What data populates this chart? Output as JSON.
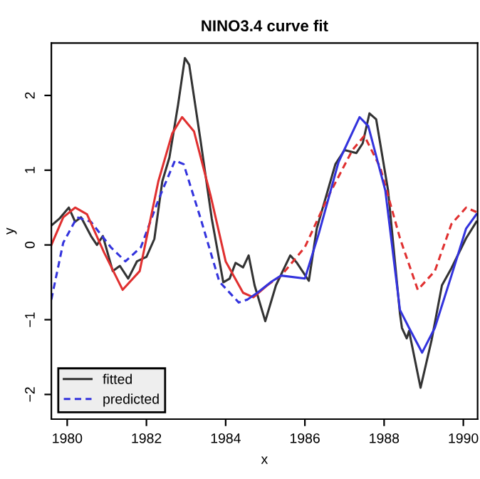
{
  "chart_data": {
    "type": "line",
    "title": "NINO3.4 curve fit",
    "xlabel": "x",
    "ylabel": "y",
    "xlim": [
      1979.6,
      1990.36
    ],
    "ylim": [
      -2.33,
      2.7
    ],
    "xticks": [
      1980,
      1982,
      1984,
      1986,
      1988,
      1990
    ],
    "yticks": [
      -2,
      -1,
      0,
      1,
      2
    ],
    "grid": false,
    "legend": "bottom left",
    "marker": "none",
    "series": [
      {
        "name": "fitted",
        "color": "#333333",
        "line_style": "solid",
        "x": [
          1979.6,
          1979.8,
          1980.04,
          1980.2,
          1980.35,
          1980.6,
          1980.75,
          1980.9,
          1981.15,
          1981.33,
          1981.54,
          1981.76,
          1982.0,
          1982.2,
          1982.4,
          1982.58,
          1982.8,
          1982.97,
          1983.08,
          1983.36,
          1983.65,
          1983.94,
          1984.1,
          1984.25,
          1984.44,
          1984.58,
          1984.73,
          1985.0,
          1985.27,
          1985.63,
          1985.8,
          1986.1,
          1986.3,
          1986.77,
          1987.0,
          1987.3,
          1987.46,
          1987.63,
          1987.8,
          1988.1,
          1988.4,
          1988.45,
          1988.57,
          1988.63,
          1988.92,
          1989.2,
          1989.46,
          1989.7,
          1990.07,
          1990.33
        ],
        "values": [
          0.26,
          0.35,
          0.5,
          0.31,
          0.37,
          0.12,
          0,
          0.12,
          -0.35,
          -0.28,
          -0.45,
          -0.22,
          -0.16,
          0.08,
          0.85,
          1.17,
          1.88,
          2.5,
          2.41,
          1.42,
          0.35,
          -0.5,
          -0.45,
          -0.24,
          -0.3,
          -0.14,
          -0.54,
          -1.02,
          -0.54,
          -0.14,
          -0.24,
          -0.48,
          0.22,
          1.08,
          1.27,
          1.23,
          1.36,
          1.76,
          1.68,
          0.73,
          -0.92,
          -1.11,
          -1.25,
          -1.15,
          -1.91,
          -1.27,
          -0.54,
          -0.31,
          0.09,
          0.31
        ]
      },
      {
        "name": "predicted",
        "color": "#3333dd",
        "line_style": "dashed",
        "x": [
          1979.6,
          1979.9,
          1980.25,
          1980.6,
          1981.1,
          1981.47,
          1981.86,
          1982.3,
          1982.72,
          1982.94,
          1983.37,
          1983.84,
          1984.33,
          1984.55
        ],
        "values": [
          -0.73,
          0.03,
          0.37,
          0.31,
          -0.03,
          -0.22,
          -0.03,
          0.6,
          1.13,
          1.08,
          0.35,
          -0.49,
          -0.77,
          -0.73
        ]
      },
      {
        "color": "#e03030",
        "line_style": "solid",
        "x": [
          1979.6,
          1979.9,
          1980.2,
          1980.5,
          1980.93,
          1981.4,
          1981.83,
          1982.3,
          1982.65,
          1982.9,
          1983.2,
          1983.62,
          1984.0,
          1984.44,
          1984.7,
          1985.05
        ],
        "values": [
          0,
          0.37,
          0.5,
          0.41,
          -0.1,
          -0.6,
          -0.35,
          0.85,
          1.49,
          1.71,
          1.52,
          0.66,
          -0.22,
          -0.64,
          -0.7,
          -0.54
        ]
      },
      {
        "color": "#e03030",
        "line_style": "dashed",
        "x": [
          1985.05,
          1985.4,
          1986.0,
          1986.6,
          1987.2,
          1987.5,
          1987.9,
          1988.4,
          1988.85,
          1989.28,
          1989.7,
          1990.07,
          1990.33
        ],
        "values": [
          -0.54,
          -0.41,
          -0.03,
          0.66,
          1.27,
          1.46,
          1.04,
          0.09,
          -0.6,
          -0.35,
          0.28,
          0.5,
          0.44
        ]
      },
      {
        "color": "#3333dd",
        "line_style": "solid",
        "x": [
          1984.55,
          1984.8,
          1985.16,
          1985.4,
          1986.0,
          1986.35,
          1986.85,
          1987.38,
          1987.6,
          1988.03,
          1988.4,
          1988.63,
          1988.96,
          1989.28,
          1989.7,
          1990.07,
          1990.33
        ],
        "values": [
          -0.73,
          -0.64,
          -0.49,
          -0.41,
          -0.45,
          0.15,
          1.11,
          1.71,
          1.59,
          0.73,
          -0.87,
          -1.11,
          -1.44,
          -1.11,
          -0.41,
          0.22,
          0.41
        ]
      }
    ]
  }
}
